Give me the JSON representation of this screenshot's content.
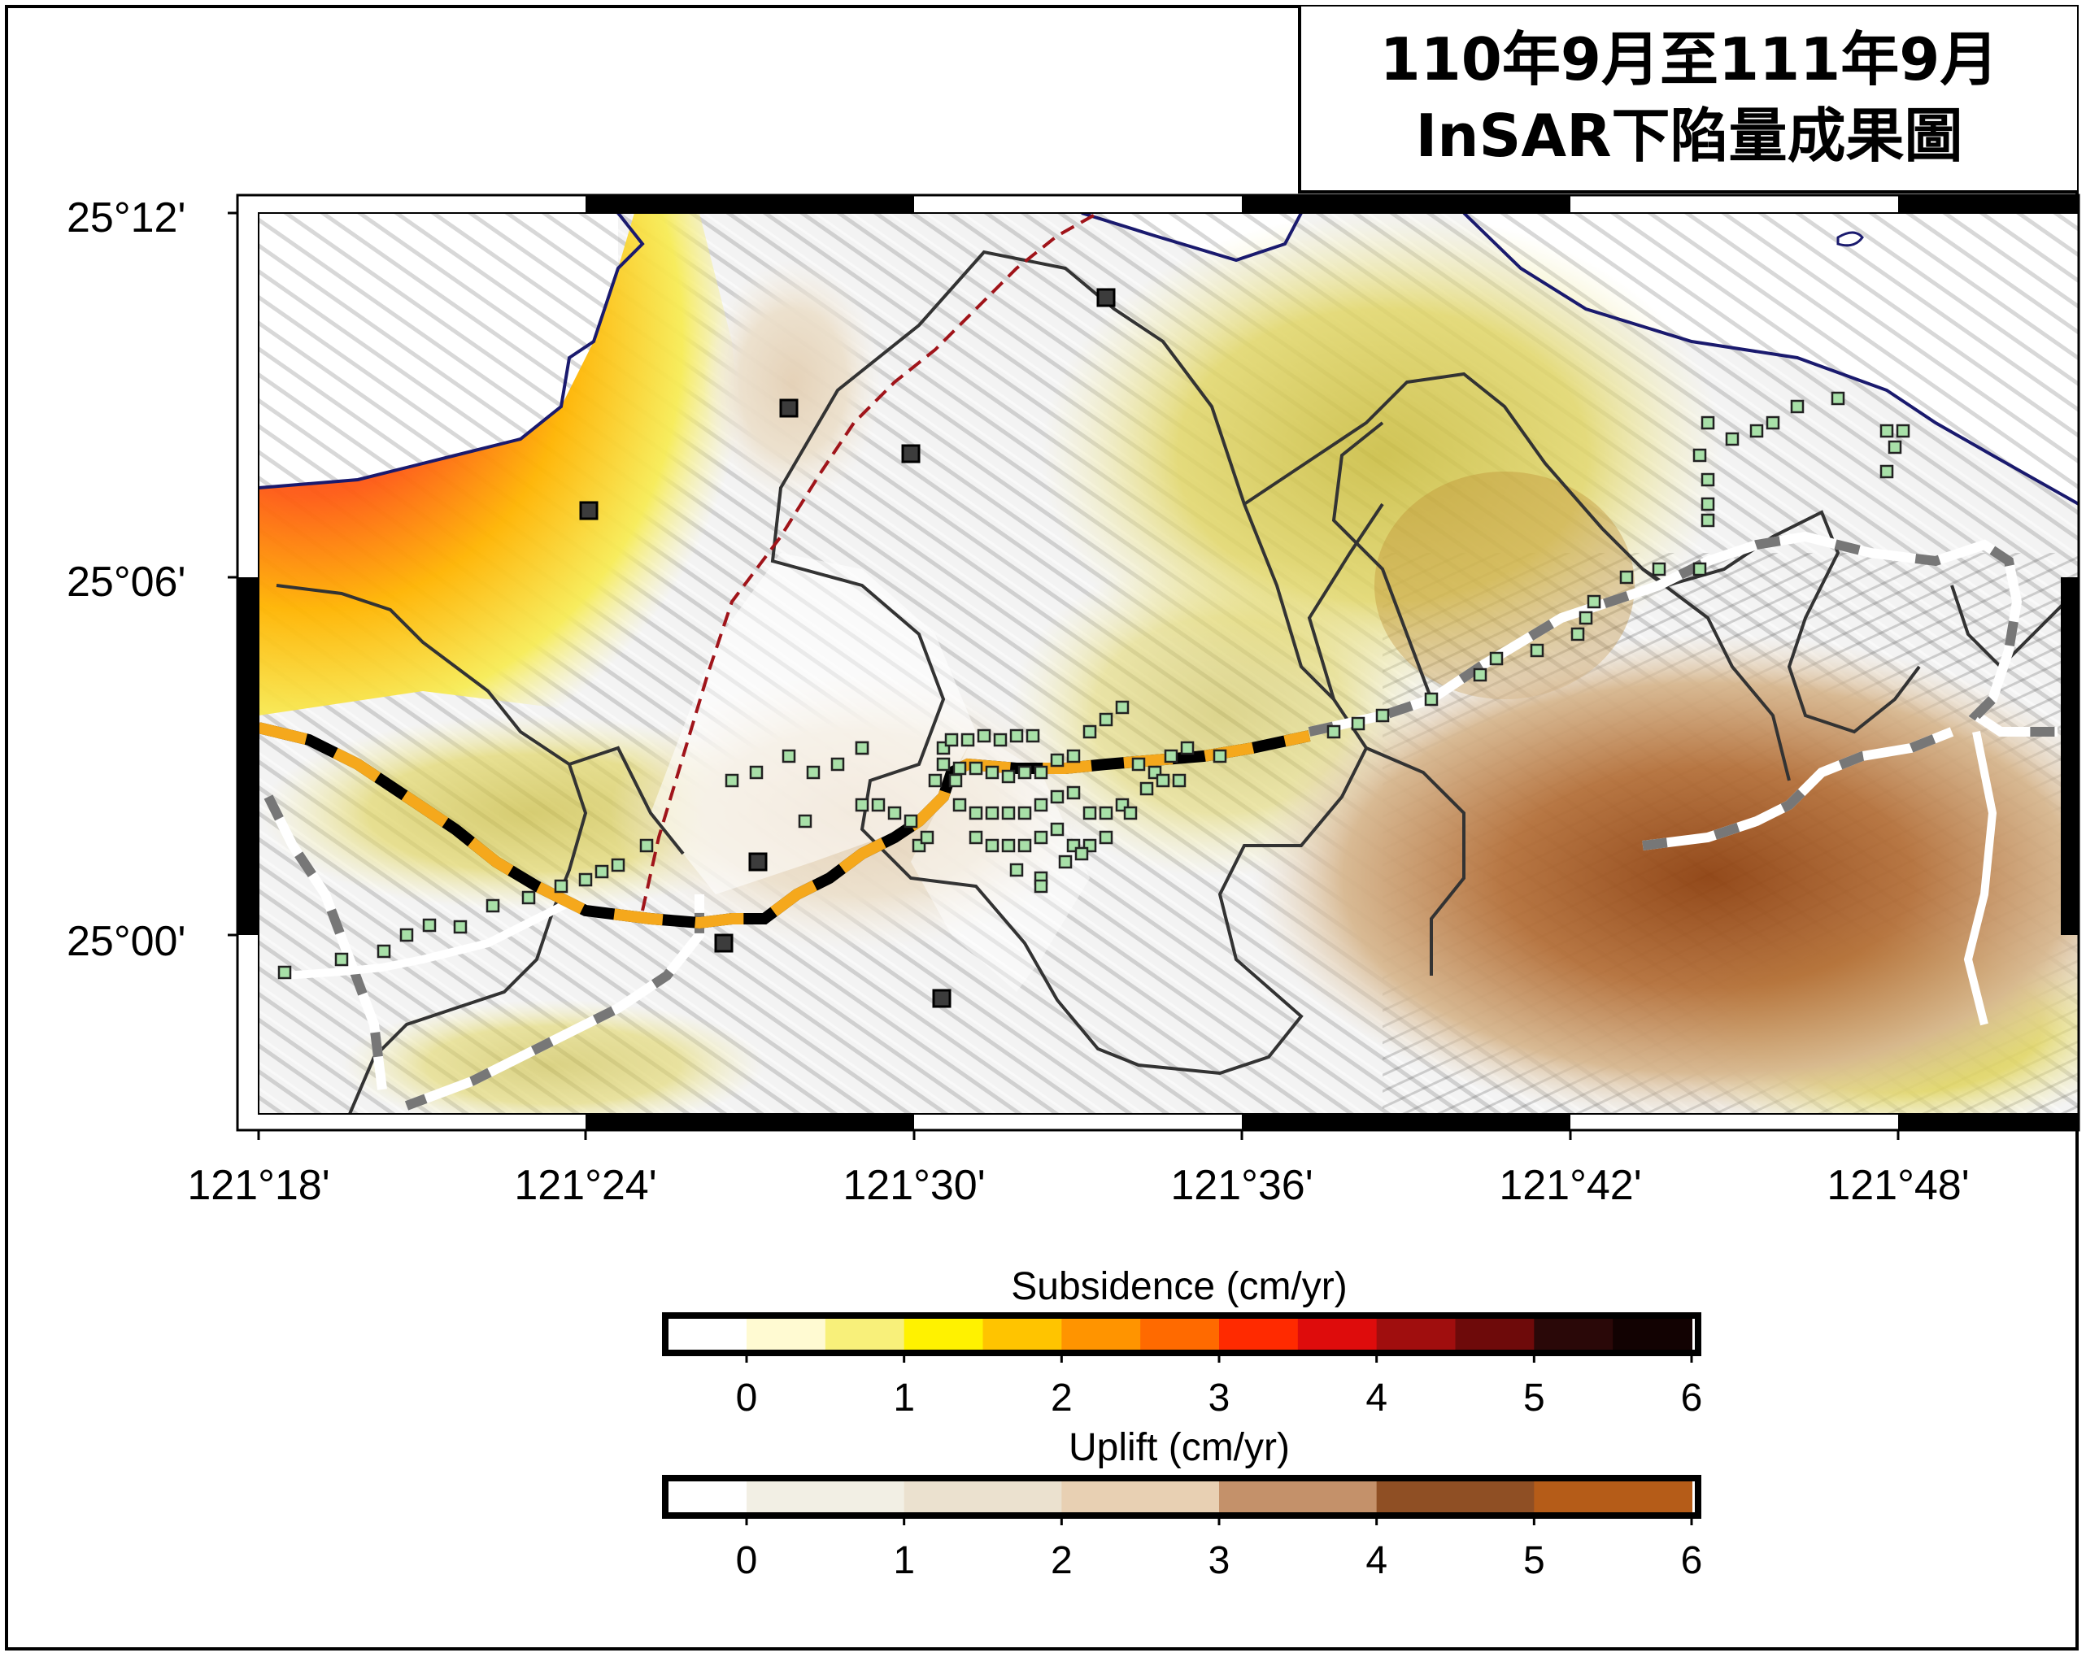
{
  "title": {
    "line1": "110年9月至111年9月",
    "line2": "InSAR下陷量成果圖"
  },
  "axes": {
    "lat_labels": [
      "25°12'",
      "25°06'",
      "25°00'"
    ],
    "lon_labels": [
      "121°18'",
      "121°24'",
      "121°30'",
      "121°36'",
      "121°42'",
      "121°48'"
    ]
  },
  "legend": {
    "subsidence": {
      "title": "Subsidence (cm/yr)",
      "ticks": [
        "0",
        "1",
        "2",
        "3",
        "4",
        "5",
        "6"
      ],
      "colors": [
        "#ffffff",
        "#fffad2",
        "#f8f07a",
        "#fff200",
        "#ffc400",
        "#ff9400",
        "#ff6a00",
        "#ff2a00",
        "#de0c0c",
        "#a00e0e",
        "#6e0a0a",
        "#2a0808",
        "#120202"
      ]
    },
    "uplift": {
      "title": "Uplift (cm/yr)",
      "ticks": [
        "0",
        "1",
        "2",
        "3",
        "4",
        "5",
        "6"
      ],
      "colors": [
        "#ffffff",
        "#f2efe4",
        "#ebe1cf",
        "#e8d0b3",
        "#c4916a",
        "#8f4f24",
        "#b55c18"
      ]
    }
  }
}
